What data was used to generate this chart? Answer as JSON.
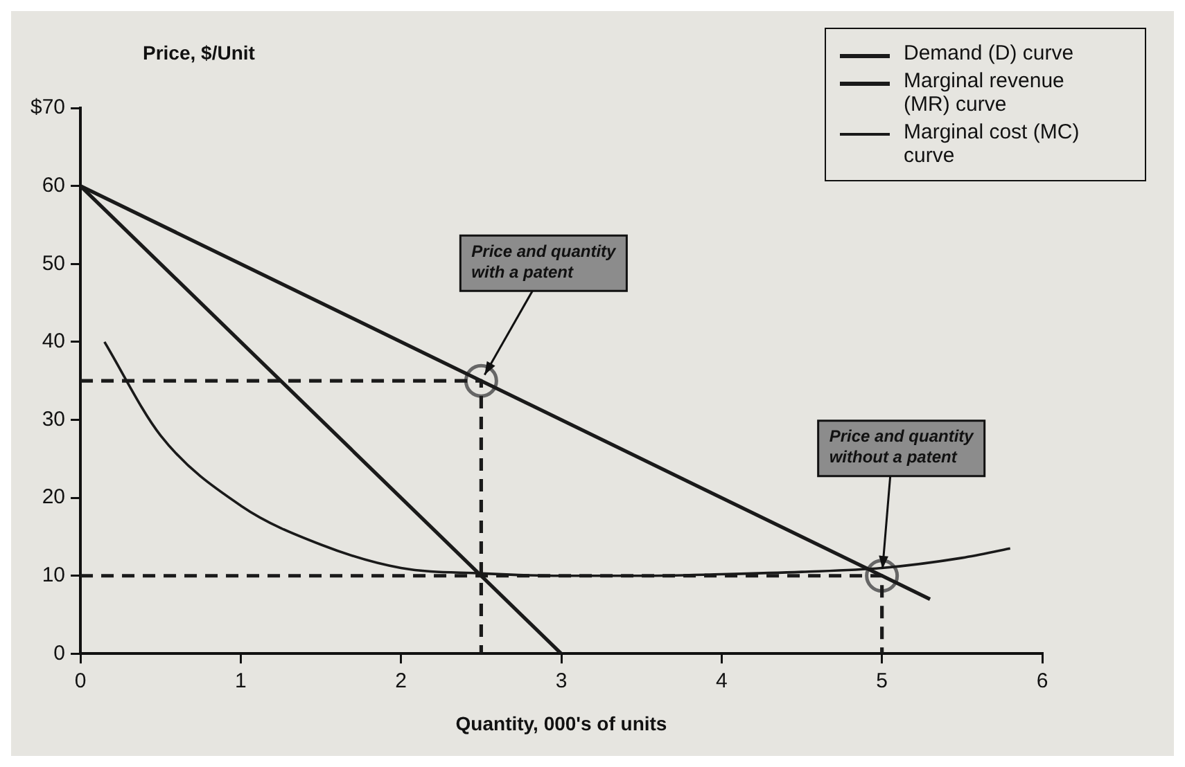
{
  "chart_data": {
    "type": "line",
    "xlabel": "Quantity, 000's of units",
    "ylabel": "Price, $/Unit",
    "xlim": [
      0,
      6
    ],
    "xticks": [
      0,
      1,
      2,
      3,
      4,
      5,
      6
    ],
    "ylim": [
      0,
      70
    ],
    "yticks": [
      0,
      10,
      20,
      30,
      40,
      50,
      60,
      {
        "value": 70,
        "label": "$70"
      }
    ],
    "grid": false,
    "legend": "top right",
    "series": [
      {
        "name": "Demand (D) curve",
        "color": "#1a1a1a",
        "x": [
          0,
          5.3
        ],
        "values": [
          60,
          7
        ],
        "marker": "none",
        "line_style": "solid"
      },
      {
        "name": "Marginal revenue (MR) curve",
        "color": "#1a1a1a",
        "x": [
          0,
          3
        ],
        "values": [
          60,
          0
        ],
        "marker": "none",
        "line_style": "solid"
      },
      {
        "name": "Marginal cost (MC) curve",
        "color": "#1a1a1a",
        "x": [
          0.15,
          0.5,
          1,
          1.5,
          2,
          2.5,
          3,
          3.5,
          4,
          4.5,
          5,
          5.5,
          5.8
        ],
        "values": [
          40,
          28,
          19,
          14,
          11,
          10.3,
          10,
          10,
          10.2,
          10.5,
          11,
          12.3,
          13.5
        ],
        "marker": "none",
        "line_style": "solid"
      },
      {
        "color": "#1a1a1a",
        "x": [
          0,
          2.5,
          2.5
        ],
        "values": [
          35,
          35,
          0
        ],
        "marker": "none",
        "line_style": "dashed"
      },
      {
        "color": "#1a1a1a",
        "x": [
          0,
          5,
          5
        ],
        "values": [
          10,
          10,
          0
        ],
        "marker": "none",
        "line_style": "dashed"
      },
      {
        "type": "scatter",
        "color": "#666666",
        "x": [
          2.5,
          5
        ],
        "values": [
          35,
          10
        ],
        "marker": "circle"
      }
    ],
    "annotations": [
      {
        "text": "Price and quantity with a patent",
        "x": 2.5,
        "y": 35
      },
      {
        "text": "Price and quantity without a patent",
        "x": 5,
        "y": 10
      }
    ]
  }
}
